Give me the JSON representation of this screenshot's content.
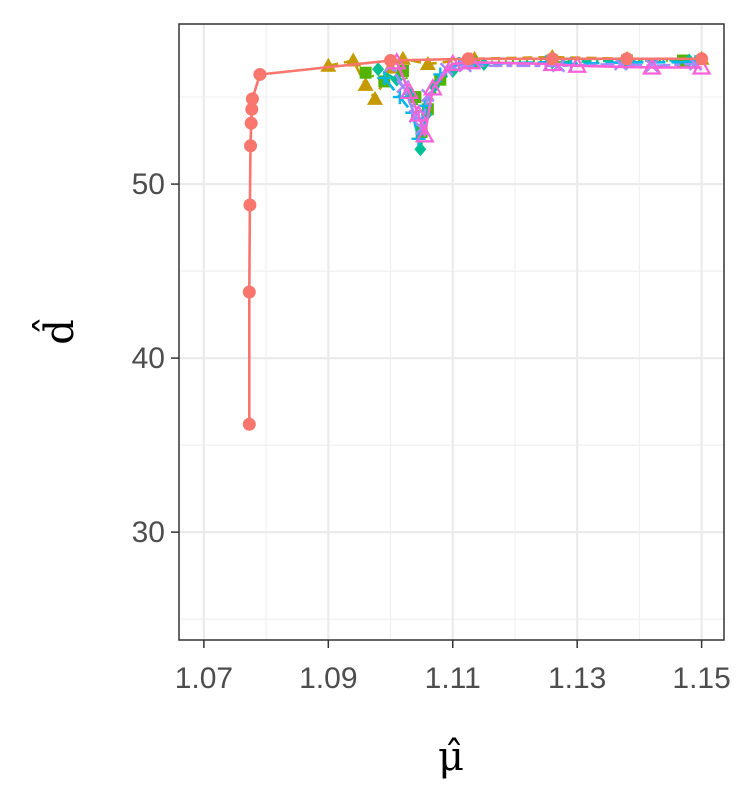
{
  "chart_data": {
    "type": "line",
    "xlabel": "μ̂",
    "ylabel": "d̂",
    "xlim": [
      1.066,
      1.1536
    ],
    "ylim": [
      23.8,
      59.2
    ],
    "x_ticks": [
      1.07,
      1.09,
      1.11,
      1.13,
      1.15
    ],
    "x_tick_labels": [
      "1.07",
      "1.09",
      "1.11",
      "1.13",
      "1.15"
    ],
    "y_ticks": [
      30,
      40,
      50
    ],
    "y_tick_labels": [
      "30",
      "40",
      "50"
    ],
    "grid": true,
    "legend": "none",
    "series": [
      {
        "color": "#F8766D",
        "marker": "circle",
        "line": "solid",
        "x": [
          1.0773,
          1.0773,
          1.0774,
          1.0775,
          1.0776,
          1.0777,
          1.0778,
          1.079,
          1.1,
          1.1125,
          1.126,
          1.138,
          1.15
        ],
        "y": [
          36.2,
          43.8,
          48.8,
          52.2,
          53.5,
          54.3,
          54.9,
          56.3,
          57.1,
          57.2,
          57.2,
          57.2,
          57.2
        ]
      },
      {
        "color": "#C49A00",
        "marker": "triangle",
        "line": "dashed",
        "x": [
          1.09,
          1.094,
          1.096,
          1.0975,
          1.1,
          1.102,
          1.106,
          1.1135,
          1.126,
          1.138,
          1.15
        ],
        "y": [
          56.8,
          57.1,
          55.7,
          54.9,
          56.7,
          57.2,
          56.9,
          57.2,
          57.3,
          57.2,
          57.2
        ]
      },
      {
        "color": "#53B400",
        "marker": "square",
        "line": "dotted",
        "x": [
          1.096,
          1.099,
          1.102,
          1.104,
          1.105,
          1.106,
          1.108,
          1.113,
          1.126,
          1.138,
          1.147
        ],
        "y": [
          56.4,
          55.9,
          56.5,
          55.0,
          53.0,
          54.3,
          56.0,
          57.0,
          57.1,
          57.1,
          57.1
        ]
      },
      {
        "color": "#00C094",
        "marker": "diamond",
        "line": "dotdash",
        "x": [
          1.098,
          1.101,
          1.103,
          1.1048,
          1.1058,
          1.107,
          1.11,
          1.115,
          1.126,
          1.138,
          1.148
        ],
        "y": [
          56.6,
          56.0,
          55.2,
          52.0,
          54.0,
          55.6,
          56.5,
          56.9,
          57.0,
          57.1,
          57.1
        ]
      },
      {
        "color": "#00B6EB",
        "marker": "cross",
        "line": "longdash",
        "x": [
          1.099,
          1.1015,
          1.1035,
          1.1045,
          1.1055,
          1.108,
          1.111,
          1.125,
          1.129,
          1.138,
          1.149
        ],
        "y": [
          56.1,
          55.0,
          54.1,
          52.6,
          54.5,
          56.3,
          56.9,
          57.0,
          56.9,
          57.0,
          57.0
        ]
      },
      {
        "color": "#A58AFF",
        "marker": "x",
        "line": "twodash",
        "x": [
          1.1,
          1.102,
          1.104,
          1.105,
          1.106,
          1.109,
          1.112,
          1.127,
          1.137,
          1.142,
          1.149
        ],
        "y": [
          56.8,
          55.6,
          53.9,
          53.2,
          55.1,
          56.6,
          56.8,
          56.8,
          56.9,
          56.8,
          56.9
        ]
      },
      {
        "color": "#FB61D7",
        "marker": "triangle-open",
        "line": "solid",
        "x": [
          1.101,
          1.103,
          1.1045,
          1.1055,
          1.1068,
          1.11,
          1.113,
          1.126,
          1.13,
          1.142,
          1.15
        ],
        "y": [
          57.0,
          55.3,
          54.0,
          52.8,
          55.5,
          56.9,
          57.0,
          56.9,
          56.8,
          56.7,
          56.7
        ]
      }
    ]
  }
}
